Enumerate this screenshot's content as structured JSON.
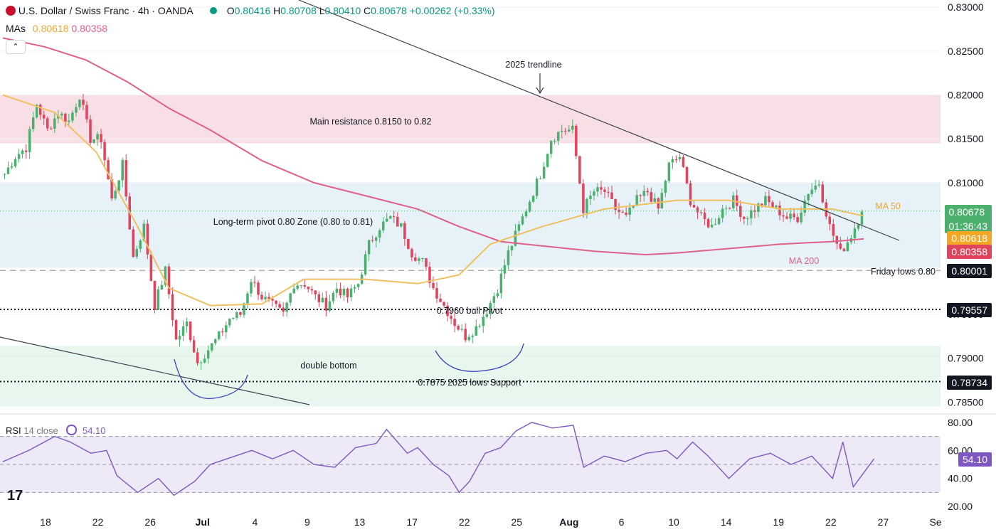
{
  "header": {
    "symbol": "U.S. Dollar / Swiss Franc · 4h · OANDA",
    "o_label": "O",
    "o": "0.80416",
    "h_label": "H",
    "h": "0.80708",
    "l_label": "L",
    "l": "0.80410",
    "c_label": "C",
    "c": "0.80678",
    "change": "+0.00262 (+0.33%)",
    "mas_label": "MAs",
    "ma50_value": "0.80618",
    "ma200_value": "0.80358"
  },
  "rsi_header": {
    "label": "RSI",
    "params": "14 close",
    "value": "54.10"
  },
  "price_tags": {
    "last": "0.80678",
    "countdown": "01:36:43",
    "ma50": "0.80618",
    "ma200": "0.80358",
    "friday_low": "0.80001",
    "bull_pivot": "0.79557",
    "lows_support": "0.78734",
    "rsi": "54.10"
  },
  "annotations": {
    "trendline": "2025 trendline",
    "resistance": "Main resistance 0.8150 to 0.82",
    "pivot_zone": "Long-term pivot 0.80 Zone (0.80 to 0.81)",
    "bull_pivot": "0.7960 bull Pivot",
    "double_bottom": "double bottom",
    "support": "0.7875 2025 lows Support",
    "friday_lows": "Friday lows 0.80",
    "ma50": "MA 50",
    "ma200": "MA 200"
  },
  "colors": {
    "up": "#4caf6e",
    "down": "#e0445c",
    "ma50": "#f0c060",
    "ma200": "#e06088",
    "resistance_zone": "#f8dfe6",
    "pivot_zone": "#e6f2f8",
    "support_zone": "#e8f7ee",
    "rsi_band": "#ede9f7",
    "rsi_line": "#7e57c2",
    "trendline": "#3a4050"
  },
  "chart_data": {
    "type": "candlestick",
    "title": "U.S. Dollar / Swiss Franc · 4h · OANDA",
    "price_axis": {
      "ticks": [
        "0.83000",
        "0.82500",
        "0.82000",
        "0.81500",
        "0.81000",
        "0.80500",
        "0.80000",
        "0.79500",
        "0.79000",
        "0.78500"
      ],
      "range": [
        0.7843,
        0.8305
      ]
    },
    "time_axis": {
      "ticks": [
        "18",
        "22",
        "26",
        "Jul",
        "4",
        "9",
        "13",
        "17",
        "22",
        "25",
        "Aug",
        "6",
        "10",
        "14",
        "19",
        "22",
        "27",
        "Se"
      ]
    },
    "rsi_axis": {
      "ticks": [
        "80.00",
        "60.00",
        "40.00",
        "20.00"
      ],
      "range": [
        16,
        83
      ],
      "band": [
        30,
        70
      ]
    },
    "zones": [
      {
        "name": "Main resistance",
        "from": 0.8145,
        "to": 0.82
      },
      {
        "name": "Long-term pivot zone",
        "from": 0.8003,
        "to": 0.81
      },
      {
        "name": "Support zone",
        "from": 0.7845,
        "to": 0.7914
      }
    ],
    "levels": [
      {
        "name": "Friday lows",
        "value": 0.80001,
        "style": "dashed"
      },
      {
        "name": "Bull pivot",
        "value": 0.79557,
        "style": "dotted"
      },
      {
        "name": "2025 lows support",
        "value": 0.78734,
        "style": "dotted"
      }
    ],
    "anchors": [
      [
        0.811,
        0.813
      ],
      [
        0.814,
        0.819
      ],
      [
        0.816,
        0.818
      ],
      [
        0.817,
        0.82
      ],
      [
        0.815,
        0.815
      ],
      [
        0.808,
        0.812
      ],
      [
        0.8015,
        0.805
      ],
      [
        0.796,
        0.8
      ],
      [
        0.792,
        0.794
      ],
      [
        0.7895,
        0.791
      ],
      [
        0.7925,
        0.7945
      ],
      [
        0.795,
        0.799
      ],
      [
        0.797,
        0.796
      ],
      [
        0.795,
        0.7985
      ],
      [
        0.7985,
        0.797
      ],
      [
        0.796,
        0.798
      ],
      [
        0.797,
        0.7985
      ],
      [
        0.803,
        0.805
      ],
      [
        0.806,
        0.805
      ],
      [
        0.802,
        0.801
      ],
      [
        0.798,
        0.796
      ],
      [
        0.794,
        0.7925
      ],
      [
        0.7935,
        0.7955
      ],
      [
        0.798,
        0.802
      ],
      [
        0.805,
        0.808
      ],
      [
        0.811,
        0.815
      ],
      [
        0.816,
        0.816
      ],
      [
        0.807,
        0.809
      ],
      [
        0.809,
        0.807
      ],
      [
        0.806,
        0.808
      ],
      [
        0.809,
        0.807
      ],
      [
        0.812,
        0.813
      ],
      [
        0.808,
        0.806
      ],
      [
        0.805,
        0.807
      ],
      [
        0.808,
        0.806
      ],
      [
        0.807,
        0.808
      ],
      [
        0.807,
        0.806
      ],
      [
        0.806,
        0.809
      ],
      [
        0.81,
        0.805
      ],
      [
        0.802,
        0.804
      ],
      [
        0.8067
      ]
    ],
    "ma50_points": [
      [
        0.0,
        0.82
      ],
      [
        0.1,
        0.818
      ],
      [
        0.18,
        0.8135
      ],
      [
        0.26,
        0.805
      ],
      [
        0.32,
        0.798
      ],
      [
        0.4,
        0.796
      ],
      [
        0.5,
        0.7962
      ],
      [
        0.58,
        0.799
      ],
      [
        0.7,
        0.799
      ],
      [
        0.8,
        0.7985
      ],
      [
        0.88,
        0.7995
      ],
      [
        0.94,
        0.803
      ],
      [
        1.04,
        0.805
      ],
      [
        1.16,
        0.807
      ],
      [
        1.3,
        0.808
      ],
      [
        1.4,
        0.808
      ],
      [
        1.5,
        0.807
      ],
      [
        1.6,
        0.807
      ],
      [
        1.66,
        0.8062
      ]
    ],
    "ma200_points": [
      [
        0.0,
        0.8265
      ],
      [
        0.08,
        0.8255
      ],
      [
        0.16,
        0.824
      ],
      [
        0.24,
        0.8215
      ],
      [
        0.32,
        0.8185
      ],
      [
        0.4,
        0.816
      ],
      [
        0.5,
        0.8125
      ],
      [
        0.6,
        0.81
      ],
      [
        0.7,
        0.8085
      ],
      [
        0.8,
        0.807
      ],
      [
        0.88,
        0.805
      ],
      [
        0.96,
        0.8033
      ],
      [
        1.04,
        0.8028
      ],
      [
        1.14,
        0.8022
      ],
      [
        1.24,
        0.8018
      ],
      [
        1.3,
        0.802
      ],
      [
        1.4,
        0.8025
      ],
      [
        1.5,
        0.803
      ],
      [
        1.6,
        0.8033
      ],
      [
        1.66,
        0.8036
      ]
    ],
    "rsi_points": [
      [
        0.0,
        52
      ],
      [
        0.05,
        60
      ],
      [
        0.1,
        70
      ],
      [
        0.13,
        66
      ],
      [
        0.17,
        58
      ],
      [
        0.2,
        60
      ],
      [
        0.22,
        42
      ],
      [
        0.26,
        30
      ],
      [
        0.3,
        40
      ],
      [
        0.33,
        28
      ],
      [
        0.37,
        38
      ],
      [
        0.4,
        50
      ],
      [
        0.44,
        55
      ],
      [
        0.48,
        60
      ],
      [
        0.52,
        54
      ],
      [
        0.56,
        60
      ],
      [
        0.6,
        50
      ],
      [
        0.64,
        48
      ],
      [
        0.68,
        62
      ],
      [
        0.72,
        65
      ],
      [
        0.74,
        75
      ],
      [
        0.78,
        58
      ],
      [
        0.8,
        62
      ],
      [
        0.83,
        50
      ],
      [
        0.86,
        42
      ],
      [
        0.88,
        30
      ],
      [
        0.9,
        38
      ],
      [
        0.93,
        58
      ],
      [
        0.96,
        62
      ],
      [
        0.99,
        74
      ],
      [
        1.02,
        80
      ],
      [
        1.06,
        76
      ],
      [
        1.1,
        78
      ],
      [
        1.12,
        48
      ],
      [
        1.16,
        56
      ],
      [
        1.2,
        52
      ],
      [
        1.24,
        58
      ],
      [
        1.28,
        60
      ],
      [
        1.3,
        54
      ],
      [
        1.33,
        66
      ],
      [
        1.36,
        56
      ],
      [
        1.4,
        40
      ],
      [
        1.44,
        54
      ],
      [
        1.48,
        58
      ],
      [
        1.52,
        50
      ],
      [
        1.56,
        56
      ],
      [
        1.6,
        40
      ],
      [
        1.62,
        66
      ],
      [
        1.64,
        34
      ],
      [
        1.68,
        54
      ]
    ]
  }
}
